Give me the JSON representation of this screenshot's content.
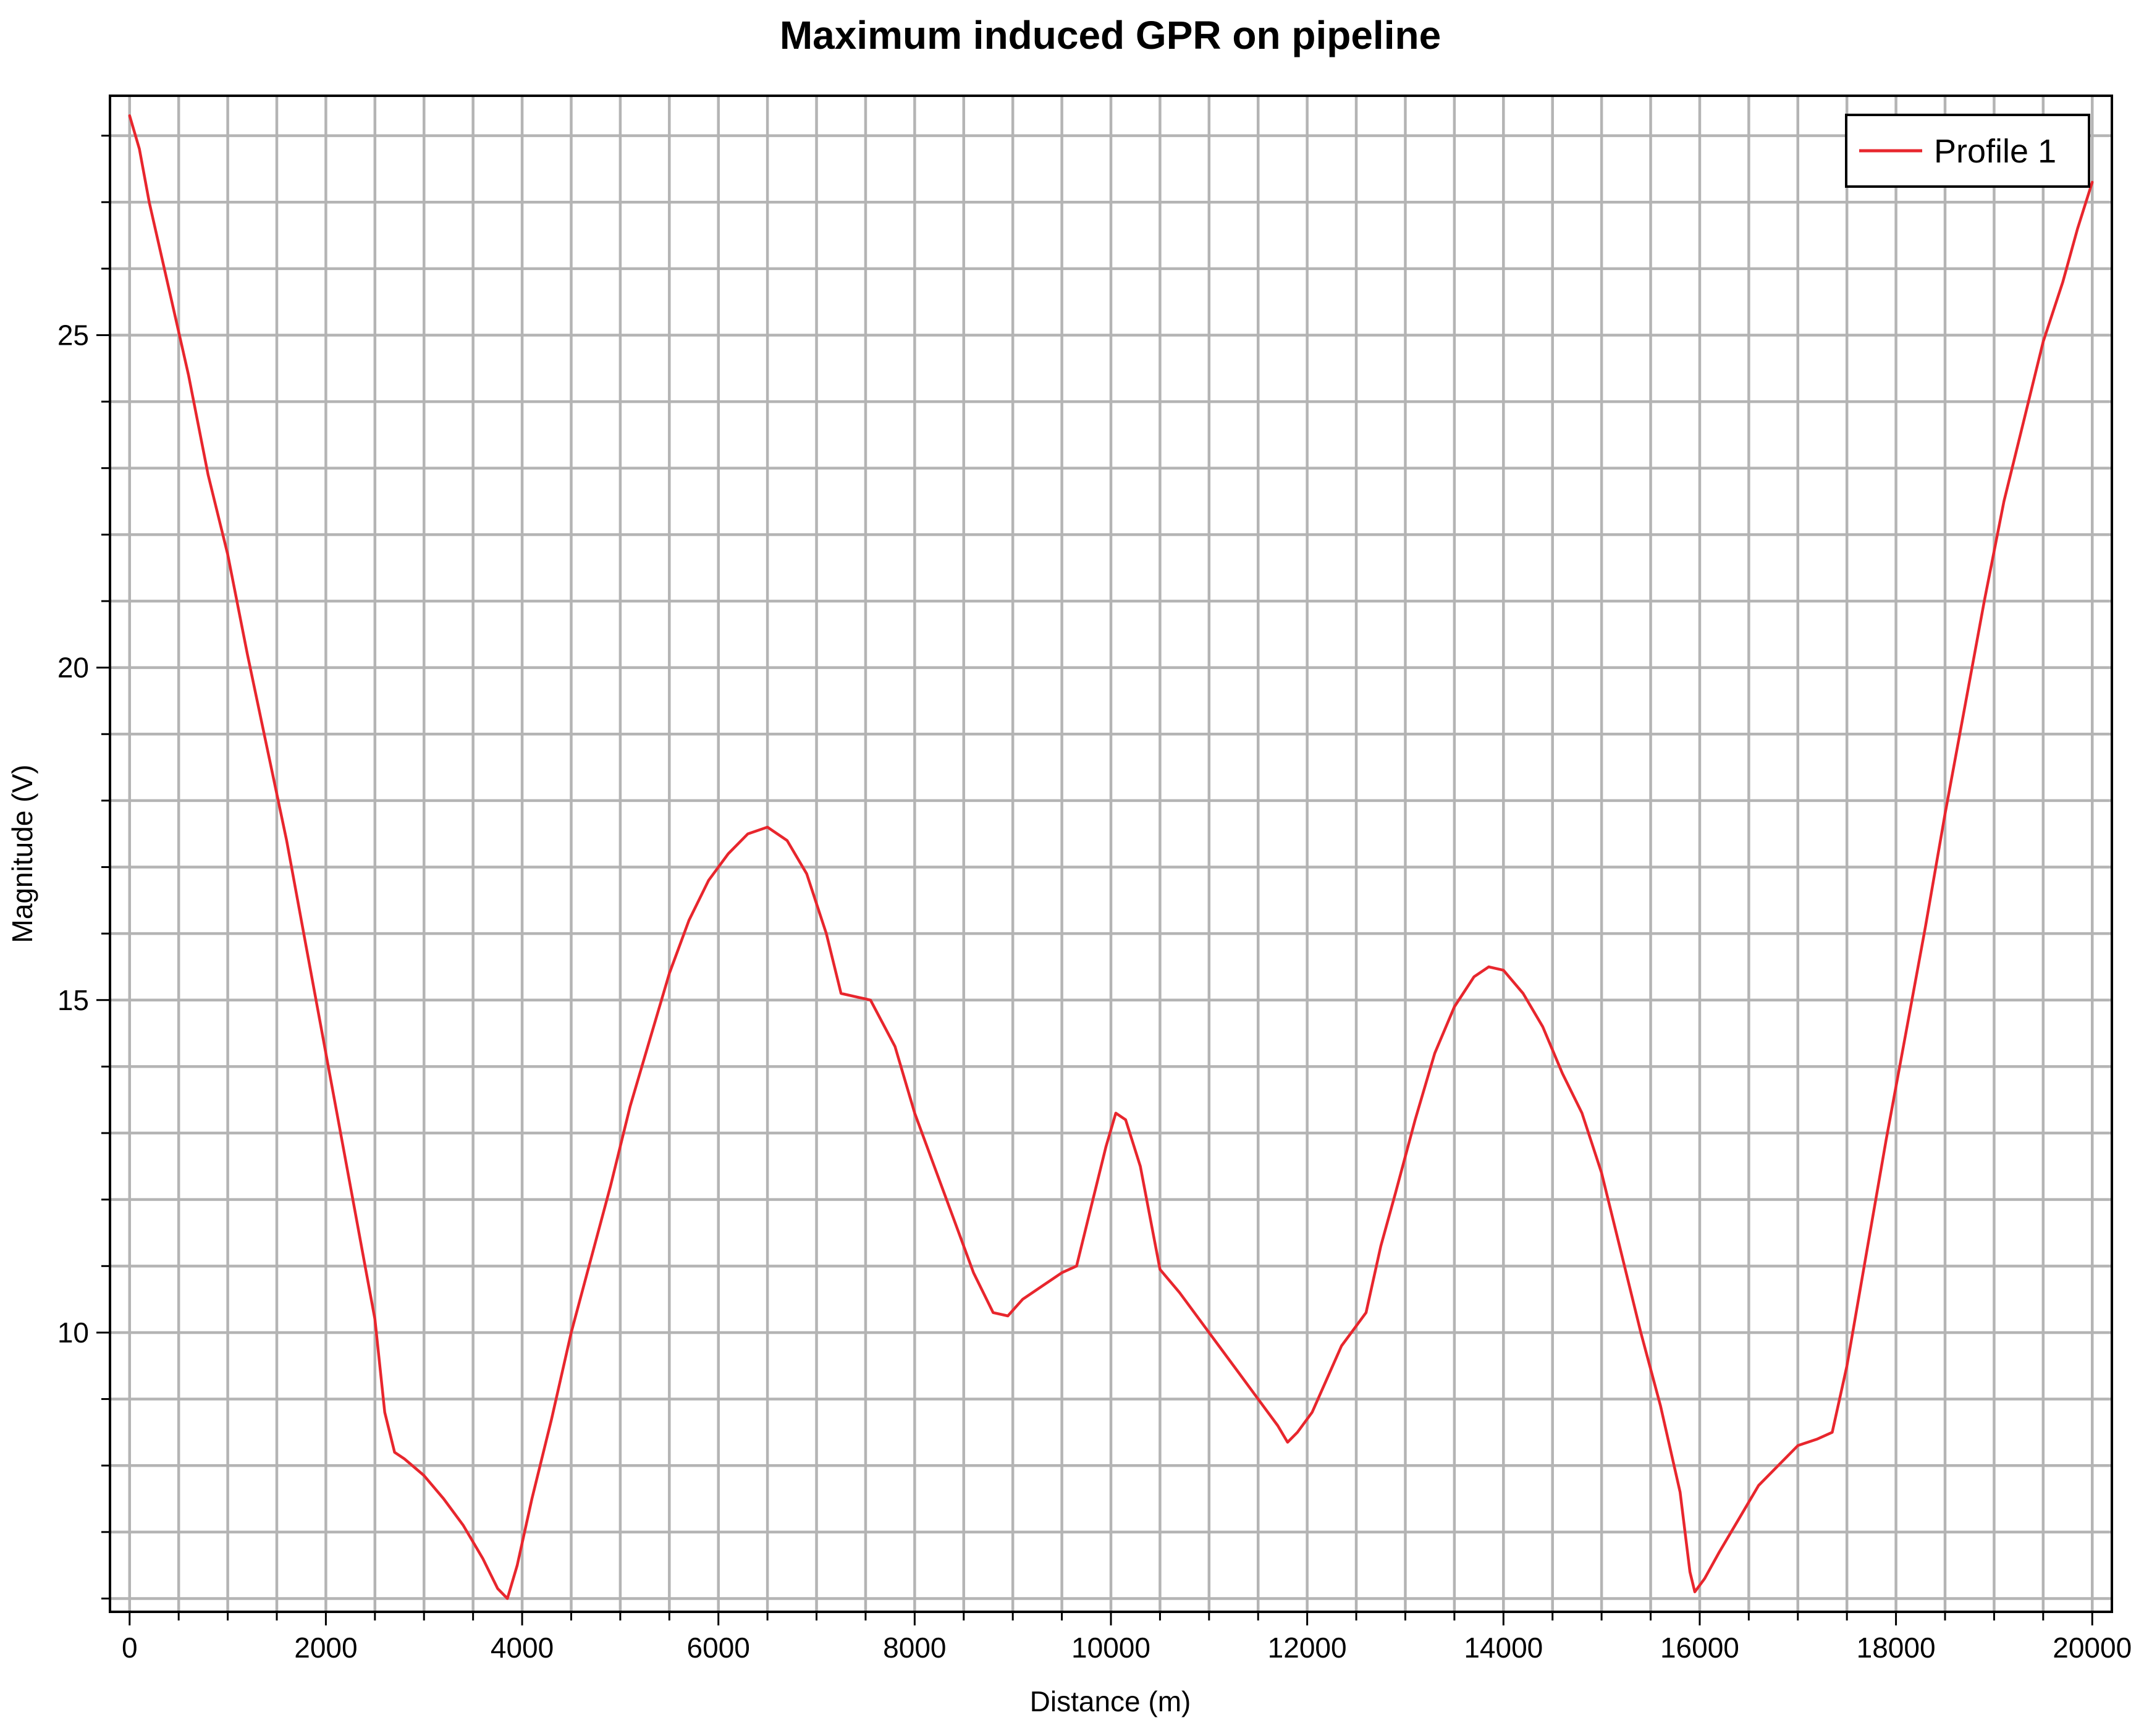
{
  "chart_data": {
    "type": "line",
    "title": "Maximum induced GPR on pipeline",
    "xlabel": "Distance (m)",
    "ylabel": "Magnitude (V)",
    "xlim": [
      -200,
      20200
    ],
    "ylim": [
      5.8,
      28.6
    ],
    "x_ticks": [
      0,
      2000,
      4000,
      6000,
      8000,
      10000,
      12000,
      14000,
      16000,
      18000,
      20000
    ],
    "x_tick_labels": [
      "0",
      "2000",
      "4000",
      "6000",
      "8000",
      "10000",
      "12000",
      "14000",
      "16000",
      "18000",
      "20000"
    ],
    "x_minor_step": 500,
    "y_ticks": [
      10,
      15,
      20,
      25
    ],
    "y_tick_labels": [
      "10",
      "15",
      "20",
      "25"
    ],
    "y_minor_step": 1,
    "grid": true,
    "legend_position": "top-right",
    "series": [
      {
        "name": "Profile 1",
        "color": "#e8262d",
        "points": [
          [
            0,
            28.3
          ],
          [
            100,
            27.8
          ],
          [
            200,
            27.0
          ],
          [
            400,
            25.7
          ],
          [
            600,
            24.4
          ],
          [
            800,
            22.9
          ],
          [
            1000,
            21.7
          ],
          [
            1200,
            20.2
          ],
          [
            1400,
            18.8
          ],
          [
            1600,
            17.4
          ],
          [
            1800,
            15.8
          ],
          [
            2000,
            14.2
          ],
          [
            2200,
            12.6
          ],
          [
            2400,
            11.0
          ],
          [
            2500,
            10.2
          ],
          [
            2600,
            8.8
          ],
          [
            2700,
            8.2
          ],
          [
            2800,
            8.1
          ],
          [
            3000,
            7.85
          ],
          [
            3200,
            7.5
          ],
          [
            3400,
            7.1
          ],
          [
            3600,
            6.6
          ],
          [
            3750,
            6.15
          ],
          [
            3850,
            6.0
          ],
          [
            3950,
            6.5
          ],
          [
            4100,
            7.5
          ],
          [
            4300,
            8.7
          ],
          [
            4500,
            10.0
          ],
          [
            4700,
            11.1
          ],
          [
            4900,
            12.2
          ],
          [
            5100,
            13.4
          ],
          [
            5300,
            14.4
          ],
          [
            5500,
            15.4
          ],
          [
            5700,
            16.2
          ],
          [
            5900,
            16.8
          ],
          [
            6100,
            17.2
          ],
          [
            6300,
            17.5
          ],
          [
            6500,
            17.6
          ],
          [
            6700,
            17.4
          ],
          [
            6900,
            16.9
          ],
          [
            7100,
            16.0
          ],
          [
            7250,
            15.1
          ],
          [
            7400,
            15.05
          ],
          [
            7550,
            15.0
          ],
          [
            7800,
            14.3
          ],
          [
            8000,
            13.3
          ],
          [
            8200,
            12.5
          ],
          [
            8400,
            11.7
          ],
          [
            8600,
            10.9
          ],
          [
            8800,
            10.3
          ],
          [
            8950,
            10.25
          ],
          [
            9100,
            10.5
          ],
          [
            9300,
            10.7
          ],
          [
            9500,
            10.9
          ],
          [
            9650,
            11.0
          ],
          [
            9800,
            11.9
          ],
          [
            9950,
            12.8
          ],
          [
            10050,
            13.3
          ],
          [
            10150,
            13.2
          ],
          [
            10300,
            12.5
          ],
          [
            10500,
            10.95
          ],
          [
            10700,
            10.6
          ],
          [
            10900,
            10.2
          ],
          [
            11100,
            9.8
          ],
          [
            11300,
            9.4
          ],
          [
            11500,
            9.0
          ],
          [
            11700,
            8.6
          ],
          [
            11800,
            8.35
          ],
          [
            11900,
            8.5
          ],
          [
            12050,
            8.8
          ],
          [
            12200,
            9.3
          ],
          [
            12350,
            9.8
          ],
          [
            12500,
            10.1
          ],
          [
            12600,
            10.3
          ],
          [
            12750,
            11.3
          ],
          [
            12900,
            12.1
          ],
          [
            13100,
            13.2
          ],
          [
            13300,
            14.2
          ],
          [
            13500,
            14.9
          ],
          [
            13700,
            15.35
          ],
          [
            13850,
            15.5
          ],
          [
            14000,
            15.45
          ],
          [
            14200,
            15.1
          ],
          [
            14400,
            14.6
          ],
          [
            14600,
            13.9
          ],
          [
            14800,
            13.3
          ],
          [
            15000,
            12.4
          ],
          [
            15200,
            11.2
          ],
          [
            15400,
            10.0
          ],
          [
            15600,
            8.9
          ],
          [
            15800,
            7.6
          ],
          [
            15900,
            6.4
          ],
          [
            15950,
            6.1
          ],
          [
            16050,
            6.3
          ],
          [
            16200,
            6.7
          ],
          [
            16400,
            7.2
          ],
          [
            16600,
            7.7
          ],
          [
            16800,
            8.0
          ],
          [
            17000,
            8.3
          ],
          [
            17200,
            8.4
          ],
          [
            17350,
            8.5
          ],
          [
            17500,
            9.5
          ],
          [
            17700,
            11.2
          ],
          [
            17900,
            12.9
          ],
          [
            18100,
            14.5
          ],
          [
            18300,
            16.1
          ],
          [
            18500,
            17.8
          ],
          [
            18700,
            19.4
          ],
          [
            18900,
            21.0
          ],
          [
            19100,
            22.5
          ],
          [
            19300,
            23.7
          ],
          [
            19500,
            24.9
          ],
          [
            19700,
            25.8
          ],
          [
            19850,
            26.6
          ],
          [
            20000,
            27.3
          ]
        ]
      }
    ]
  }
}
